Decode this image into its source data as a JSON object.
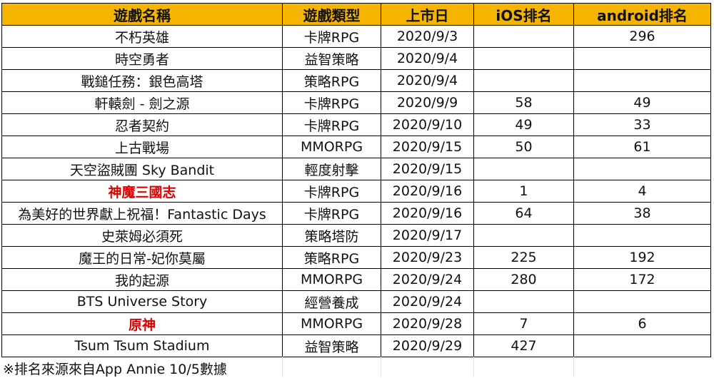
{
  "table": {
    "headers": [
      "遊戲名稱",
      "遊戲類型",
      "上市日",
      "iOS排名",
      "android排名"
    ],
    "rows": [
      {
        "name": "不朽英雄",
        "genre": "卡牌RPG",
        "date": "2020/9/3",
        "ios": "",
        "android": "296",
        "highlight": false
      },
      {
        "name": "時空勇者",
        "genre": "益智策略",
        "date": "2020/9/4",
        "ios": "",
        "android": "",
        "highlight": false
      },
      {
        "name": "戰鎚任務：銀色高塔",
        "genre": "策略RPG",
        "date": "2020/9/4",
        "ios": "",
        "android": "",
        "highlight": false
      },
      {
        "name": "軒轅劍 - 劍之源",
        "genre": "卡牌RPG",
        "date": "2020/9/9",
        "ios": "58",
        "android": "49",
        "highlight": false
      },
      {
        "name": "忍者契約",
        "genre": "卡牌RPG",
        "date": "2020/9/10",
        "ios": "49",
        "android": "33",
        "highlight": false
      },
      {
        "name": "上古戰場",
        "genre": "MMORPG",
        "date": "2020/9/15",
        "ios": "50",
        "android": "61",
        "highlight": false
      },
      {
        "name": "天空盜賊團 Sky Bandit",
        "genre": "輕度射擊",
        "date": "2020/9/15",
        "ios": "",
        "android": "",
        "highlight": false
      },
      {
        "name": "神魔三國志",
        "genre": "卡牌RPG",
        "date": "2020/9/16",
        "ios": "1",
        "android": "4",
        "highlight": true
      },
      {
        "name": "為美好的世界獻上祝福！Fantastic Days",
        "genre": "卡牌RPG",
        "date": "2020/9/16",
        "ios": "64",
        "android": "38",
        "highlight": false
      },
      {
        "name": "史萊姆必須死",
        "genre": "策略塔防",
        "date": "2020/9/17",
        "ios": "",
        "android": "",
        "highlight": false
      },
      {
        "name": "魔王的日常-妃你莫屬",
        "genre": "策略RPG",
        "date": "2020/9/23",
        "ios": "225",
        "android": "192",
        "highlight": false
      },
      {
        "name": "我的起源",
        "genre": "MMORPG",
        "date": "2020/9/24",
        "ios": "280",
        "android": "172",
        "highlight": false
      },
      {
        "name": "BTS Universe Story",
        "genre": "經營養成",
        "date": "2020/9/24",
        "ios": "",
        "android": "",
        "highlight": false
      },
      {
        "name": "原神",
        "genre": "MMORPG",
        "date": "2020/9/28",
        "ios": "7",
        "android": "6",
        "highlight": true
      },
      {
        "name": "Tsum Tsum Stadium",
        "genre": "益智策略",
        "date": "2020/9/29",
        "ios": "427",
        "android": "",
        "highlight": false
      }
    ]
  },
  "footnote": "※排名來源來自App Annie 10/5數據",
  "colors": {
    "header_bg": "#f5b400",
    "highlight_text": "#e00000"
  }
}
